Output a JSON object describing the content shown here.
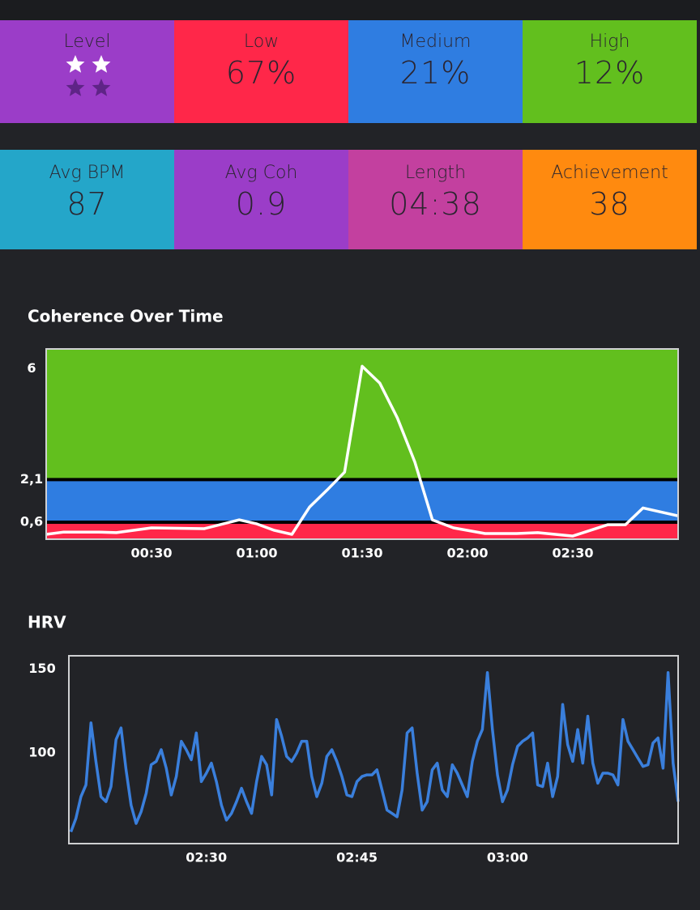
{
  "stats": {
    "rows": [
      [
        {
          "label": "Level",
          "stars_filled": 2,
          "stars_total": 4,
          "color": "#9b3dc8"
        },
        {
          "label": "Low",
          "value": "67%",
          "color": "#ff2749"
        },
        {
          "label": "Medium",
          "value": "21%",
          "color": "#2f7de1"
        },
        {
          "label": "High",
          "value": "12%",
          "color": "#62bf1e"
        }
      ],
      [
        {
          "label": "Avg BPM",
          "value": "87",
          "color": "#24a6c9"
        },
        {
          "label": "Avg Coh",
          "value": "0.9",
          "color": "#9b3dc8"
        },
        {
          "label": "Length",
          "value": "04:38",
          "color": "#c3409f"
        },
        {
          "label": "Achievement",
          "value": "38",
          "color": "#ff8a0f"
        }
      ]
    ]
  },
  "chart_data": [
    {
      "type": "line",
      "title": "Coherence Over Time",
      "x": [
        0,
        5,
        15,
        20,
        30,
        45,
        55,
        60,
        65,
        70,
        75,
        80,
        85,
        90,
        95,
        100,
        105,
        110,
        116,
        125,
        134,
        140,
        150,
        160,
        165,
        170,
        180
      ],
      "series": [
        {
          "name": "Coherence",
          "color": "#ffffff",
          "values": [
            0.17,
            0.25,
            0.25,
            0.23,
            0.4,
            0.37,
            0.68,
            0.54,
            0.31,
            0.17,
            1.13,
            1.73,
            2.36,
            6.09,
            5.5,
            4.28,
            2.72,
            0.68,
            0.4,
            0.2,
            0.2,
            0.23,
            0.11,
            0.51,
            0.51,
            1.1,
            0.82
          ]
        }
      ],
      "bands": [
        {
          "from": 0,
          "to": 0.6,
          "color": "#ff2749"
        },
        {
          "from": 0.6,
          "to": 2.1,
          "color": "#2f7de1"
        },
        {
          "from": 2.1,
          "color": "#62bf1e"
        }
      ],
      "xlim": [
        0,
        180
      ],
      "xticks": [
        {
          "value": 30,
          "label": "00:30"
        },
        {
          "value": 60,
          "label": "01:00"
        },
        {
          "value": 90,
          "label": "01:30"
        },
        {
          "value": 120,
          "label": "02:00"
        },
        {
          "value": 150,
          "label": "02:30"
        }
      ],
      "ylim": [
        0,
        6.7
      ],
      "yticks": [
        {
          "value": 0.6,
          "label": "0,6"
        },
        {
          "value": 2.1,
          "label": "2,1"
        },
        6
      ],
      "grid": false
    },
    {
      "type": "line",
      "title": "HRV",
      "x": [
        136.5,
        137,
        137.5,
        138,
        138.5,
        139,
        139.5,
        140,
        140.5,
        141,
        141.5,
        142,
        142.5,
        143,
        143.5,
        144,
        144.5,
        145,
        145.5,
        146,
        146.5,
        147,
        147.5,
        148,
        148.5,
        149,
        149.5,
        150,
        150.5,
        151,
        151.5,
        152,
        152.5,
        153,
        153.5,
        154,
        154.5,
        155,
        155.5,
        156,
        156.5,
        157,
        157.5,
        158,
        158.5,
        159,
        159.5,
        160,
        160.5,
        161,
        161.5,
        162,
        162.5,
        163,
        163.5,
        164,
        164.5,
        165,
        165.5,
        166,
        166.5,
        167,
        167.5,
        168,
        168.5,
        169,
        169.5,
        170,
        170.5,
        171,
        171.5,
        172,
        172.5,
        173,
        173.5,
        174,
        174.5,
        175,
        175.5,
        176,
        176.5,
        177,
        177.5,
        178,
        178.5,
        179,
        179.5,
        180,
        180.5,
        181,
        181.5,
        182,
        182.5,
        183,
        183.5,
        184,
        184.5,
        185,
        185.5,
        186,
        186.5,
        187,
        187.5,
        188,
        188.5,
        189,
        189.5,
        190,
        190.5,
        191,
        191.5,
        192,
        192.5,
        193,
        193.5,
        194,
        194.5,
        195,
        195.5,
        196,
        196.5,
        197
      ],
      "series": [
        {
          "name": "HRV",
          "color": "#3a7fdc",
          "values": [
            53,
            61,
            74,
            81,
            118,
            95,
            74,
            71,
            80,
            108,
            115,
            90,
            69,
            58,
            65,
            76,
            93,
            95,
            102,
            91,
            75,
            86,
            107,
            102,
            96,
            112,
            83,
            88,
            94,
            83,
            69,
            60,
            64,
            71,
            79,
            71,
            64,
            83,
            98,
            93,
            75,
            120,
            110,
            98,
            95,
            100,
            107,
            107,
            86,
            74,
            82,
            98,
            102,
            95,
            86,
            75,
            74,
            83,
            86,
            87,
            87,
            90,
            78,
            66,
            64,
            62,
            78,
            112,
            115,
            88,
            66,
            71,
            90,
            94,
            78,
            74,
            93,
            88,
            81,
            74,
            95,
            107,
            114,
            148,
            114,
            87,
            71,
            78,
            93,
            104,
            107,
            109,
            112,
            81,
            80,
            94,
            74,
            86,
            129,
            105,
            95,
            114,
            94,
            122,
            94,
            82,
            88,
            88,
            87,
            81,
            120,
            107,
            102,
            97,
            92,
            93,
            106,
            109,
            91,
            148,
            94,
            71
          ]
        }
      ],
      "xlim": [
        136.3,
        197
      ],
      "xticks": [
        {
          "value": 150,
          "label": "02:30"
        },
        {
          "value": 165,
          "label": "02:45"
        },
        {
          "value": 180,
          "label": "03:00"
        }
      ],
      "ylim": [
        46,
        158
      ],
      "yticks": [
        100,
        150
      ],
      "grid": false
    }
  ]
}
